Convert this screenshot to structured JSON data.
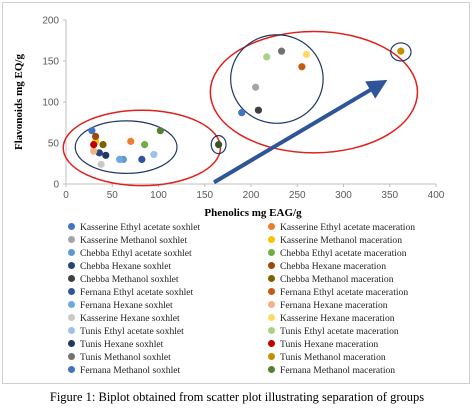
{
  "chart_data": {
    "type": "scatter",
    "title": "",
    "xlabel": "Phenolics mg EAG/g",
    "ylabel": "Flavonoids mg EQ/g",
    "xlim": [
      0,
      400
    ],
    "ylim": [
      0,
      200
    ],
    "x_ticks": [
      "0",
      "50",
      "100",
      "150",
      "200",
      "250",
      "300",
      "350",
      "400"
    ],
    "y_ticks": [
      "0",
      "50",
      "100",
      "150",
      "200"
    ],
    "grid": false,
    "series": [
      {
        "name": "Kasserine Ethyl acetate  soxhlet",
        "color": "#4472c4",
        "x": [
          28
        ],
        "y": [
          65
        ]
      },
      {
        "name": "Kasserine Ethyl acetate maceration",
        "color": "#ed7d31",
        "x": [
          70
        ],
        "y": [
          52
        ]
      },
      {
        "name": "Kasserine Methanol  soxhlet",
        "color": "#a5a5a5",
        "x": [
          205
        ],
        "y": [
          118
        ]
      },
      {
        "name": "Kasserine Methanol maceration",
        "color": "#ffc000",
        "x": [
          32
        ],
        "y": [
          52
        ]
      },
      {
        "name": "Chebba Ethyl acetate  soxhlet",
        "color": "#5b9bd5",
        "x": [
          62
        ],
        "y": [
          30
        ]
      },
      {
        "name": "Chebba Ethyl acetate maceration",
        "color": "#70ad47",
        "x": [
          85
        ],
        "y": [
          48
        ]
      },
      {
        "name": "Chebba Hexane  soxhlet",
        "color": "#264478",
        "x": [
          36
        ],
        "y": [
          38
        ]
      },
      {
        "name": "Chebba Hexane maceration",
        "color": "#9e480e",
        "x": [
          32
        ],
        "y": [
          58
        ]
      },
      {
        "name": "Chebba Methanol  soxhlet",
        "color": "#404040",
        "x": [
          208
        ],
        "y": [
          90
        ]
      },
      {
        "name": "Chebba Methanol maceration",
        "color": "#7f6000",
        "x": [
          40
        ],
        "y": [
          48
        ]
      },
      {
        "name": "Fernana Ethyl acetate  soxhlet",
        "color": "#2e5597",
        "x": [
          82
        ],
        "y": [
          30
        ]
      },
      {
        "name": "Fernana Ethyl acetate maceration",
        "color": "#c55a11",
        "x": [
          255
        ],
        "y": [
          143
        ]
      },
      {
        "name": "Fernana Hexane  soxhlet",
        "color": "#6fa8dc",
        "x": [
          58
        ],
        "y": [
          30
        ]
      },
      {
        "name": "Fernana Hexane maceration",
        "color": "#f4b183",
        "x": [
          30
        ],
        "y": [
          40
        ]
      },
      {
        "name": "Kasserine Hexane  soxhlet",
        "color": "#c9c9c9",
        "x": [
          38
        ],
        "y": [
          24
        ]
      },
      {
        "name": "Kasserine Hexane maceration",
        "color": "#ffd966",
        "x": [
          260
        ],
        "y": [
          158
        ]
      },
      {
        "name": "Tunis Ethyl acetate  soxhlet",
        "color": "#9dc3e6",
        "x": [
          95
        ],
        "y": [
          36
        ]
      },
      {
        "name": "Tunis Ethyl acetate maceration",
        "color": "#a9d18e",
        "x": [
          217
        ],
        "y": [
          155
        ]
      },
      {
        "name": "Tunis Hexane  soxhlet",
        "color": "#1f3864",
        "x": [
          43
        ],
        "y": [
          35
        ]
      },
      {
        "name": "Tunis Hexane maceration",
        "color": "#c00000",
        "x": [
          30
        ],
        "y": [
          48
        ]
      },
      {
        "name": "Tunis Methanol  soxhlet",
        "color": "#767171",
        "x": [
          233
        ],
        "y": [
          162
        ]
      },
      {
        "name": "Tunis Methanol maceration",
        "color": "#bf9000",
        "x": [
          362
        ],
        "y": [
          162
        ]
      },
      {
        "name": "Fernana Methanol  soxhlet",
        "color": "#4472c4",
        "x": [
          190
        ],
        "y": [
          87
        ]
      },
      {
        "name": "Fernana Methanol maceration",
        "color": "#548235",
        "x": [
          102
        ],
        "y": [
          65
        ]
      }
    ],
    "extra_points": [
      {
        "color": "#375623",
        "x": 165,
        "y": 48
      }
    ],
    "annotations": {
      "red_ellipses": [
        {
          "cx": 82,
          "cy": 44,
          "rx": 85,
          "ry": 46
        },
        {
          "cx": 268,
          "cy": 112,
          "rx": 112,
          "ry": 74
        }
      ],
      "blue_ellipses": [
        {
          "cx": 65,
          "cy": 45,
          "rx": 55,
          "ry": 32
        },
        {
          "cx": 165,
          "cy": 48,
          "rx": 8,
          "ry": 11
        },
        {
          "cx": 228,
          "cy": 128,
          "rx": 50,
          "ry": 54
        },
        {
          "cx": 362,
          "cy": 161,
          "rx": 11,
          "ry": 11
        }
      ],
      "arrow": {
        "from": [
          160,
          2
        ],
        "to": [
          340,
          122
        ],
        "color": "#2e5597"
      }
    }
  },
  "caption": "Figure 1: Biplot obtained from scatter plot illustrating separation of groups"
}
